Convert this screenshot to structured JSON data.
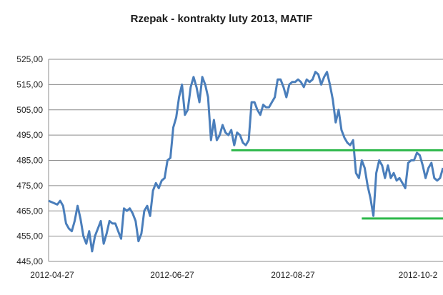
{
  "chart_data": {
    "type": "line",
    "title": "Rzepak - kontrakty luty 2013, MATIF",
    "xlabel": "",
    "ylabel": "",
    "ylim": [
      445,
      525
    ],
    "y_ticks": [
      "525,00",
      "515,00",
      "505,00",
      "495,00",
      "485,00",
      "475,00",
      "465,00",
      "455,00",
      "445,00"
    ],
    "x_tick_labels": [
      "2012-04-27",
      "2012-06-27",
      "2012-08-27",
      "2012-10-2"
    ],
    "grid": "horizontal",
    "line_color": "#4a7ebb",
    "series": [
      {
        "values": [
          469,
          468.5,
          468,
          467.5,
          469,
          467,
          460,
          458,
          457,
          461,
          467,
          462,
          455,
          452,
          457,
          449,
          455,
          458,
          461,
          452,
          456,
          461,
          460,
          460,
          457,
          454,
          466,
          465,
          466,
          464,
          461,
          453,
          456,
          465,
          467,
          463,
          473,
          476,
          474,
          477,
          478,
          485,
          486,
          498,
          502,
          510,
          515,
          503,
          505,
          514,
          518,
          514,
          508,
          518,
          515,
          510,
          493,
          501,
          493,
          495,
          499,
          496,
          495,
          497,
          491,
          496,
          495,
          492,
          491,
          493,
          508,
          508,
          505,
          503,
          507,
          506,
          506,
          508,
          510,
          517,
          517,
          514,
          510,
          515,
          516,
          516,
          517,
          516,
          514,
          517,
          516,
          517,
          520,
          519,
          515,
          518,
          520,
          515,
          509,
          500,
          505,
          497,
          494,
          492,
          491,
          493,
          480,
          478,
          485,
          482,
          475,
          470,
          463,
          480,
          485,
          483,
          478,
          483,
          478,
          480,
          477,
          478,
          476,
          474,
          484,
          485,
          485,
          488,
          487,
          483,
          478,
          482,
          484,
          478,
          477,
          478,
          482
        ],
        "color": "#4a7ebb"
      }
    ],
    "annotations": [
      {
        "type": "hline",
        "y": 489,
        "x_start_index": 63,
        "x_end_index": 136,
        "color": "#2db84a"
      },
      {
        "type": "hline",
        "y": 462,
        "x_start_index": 108,
        "x_end_index": 136,
        "color": "#2db84a"
      }
    ]
  }
}
